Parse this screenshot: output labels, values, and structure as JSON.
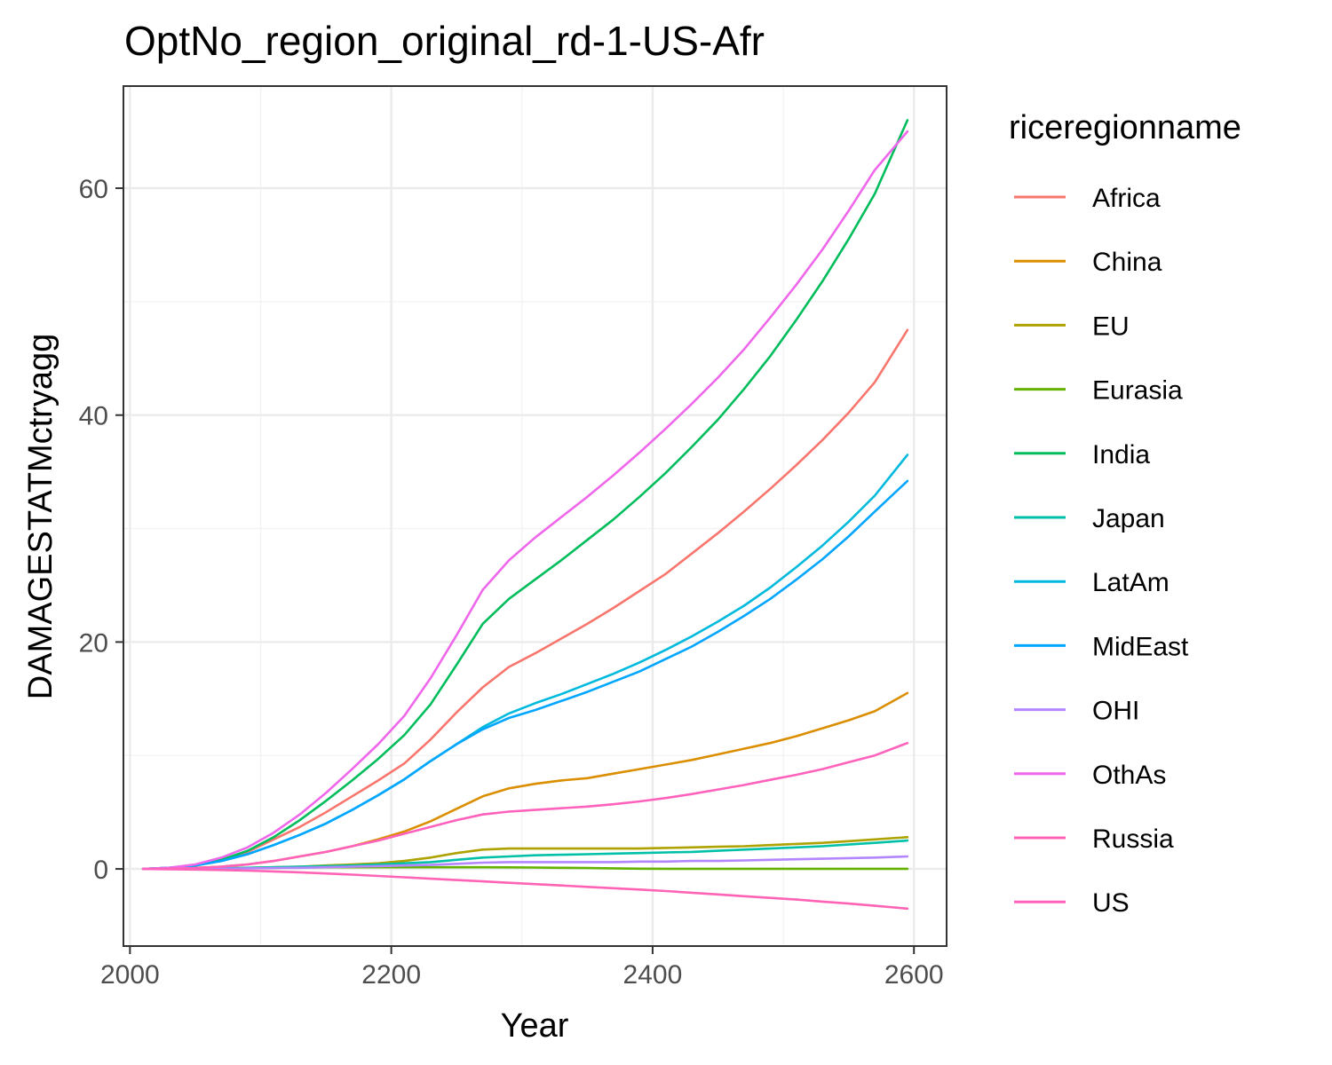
{
  "chart_data": {
    "type": "line",
    "title": "OptNo_region_original_rd-1-US-Afr",
    "xlabel": "Year",
    "ylabel": "DAMAGESTATMctryagg",
    "xlim": [
      1995,
      2625
    ],
    "ylim": [
      -6.8,
      69
    ],
    "x_ticks": [
      2000,
      2200,
      2400,
      2600
    ],
    "y_ticks": [
      0,
      20,
      40,
      60
    ],
    "x_minor": [
      2100,
      2300,
      2500
    ],
    "y_minor": [
      10,
      30,
      50
    ],
    "grid": true,
    "legend_title": "riceregionname",
    "legend_position": "right",
    "x": [
      2010,
      2030,
      2050,
      2070,
      2090,
      2110,
      2130,
      2150,
      2170,
      2190,
      2210,
      2230,
      2250,
      2270,
      2290,
      2310,
      2330,
      2350,
      2370,
      2390,
      2410,
      2430,
      2450,
      2470,
      2490,
      2510,
      2530,
      2550,
      2570,
      2595
    ],
    "series": [
      {
        "name": "Africa",
        "color": "#F8766D",
        "values": [
          0,
          0.1,
          0.3,
          0.8,
          1.5,
          2.6,
          3.7,
          5.0,
          6.4,
          7.8,
          9.3,
          11.4,
          13.8,
          16.0,
          17.8,
          19.0,
          20.3,
          21.6,
          23.0,
          24.5,
          26.0,
          27.8,
          29.6,
          31.5,
          33.5,
          35.6,
          37.8,
          40.2,
          42.9,
          47.5
        ]
      },
      {
        "name": "China",
        "color": "#DB8E00",
        "values": [
          0,
          0.02,
          0.1,
          0.2,
          0.4,
          0.7,
          1.1,
          1.5,
          2.0,
          2.6,
          3.3,
          4.2,
          5.3,
          6.4,
          7.1,
          7.5,
          7.8,
          8.0,
          8.4,
          8.8,
          9.2,
          9.6,
          10.1,
          10.6,
          11.1,
          11.7,
          12.4,
          13.1,
          13.9,
          15.5
        ]
      },
      {
        "name": "EU",
        "color": "#AEA200",
        "values": [
          0,
          0,
          0.02,
          0.05,
          0.1,
          0.15,
          0.2,
          0.3,
          0.4,
          0.5,
          0.7,
          1.0,
          1.4,
          1.7,
          1.8,
          1.8,
          1.8,
          1.8,
          1.8,
          1.8,
          1.85,
          1.9,
          1.95,
          2.0,
          2.1,
          2.2,
          2.3,
          2.45,
          2.6,
          2.8
        ]
      },
      {
        "name": "Eurasia",
        "color": "#64B200",
        "values": [
          0,
          0.02,
          0.04,
          0.06,
          0.08,
          0.1,
          0.12,
          0.14,
          0.15,
          0.15,
          0.15,
          0.15,
          0.15,
          0.15,
          0.14,
          0.12,
          0.1,
          0.08,
          0.05,
          0.02,
          0.01,
          0.01,
          0.01,
          0.01,
          0.01,
          0.01,
          0.01,
          0.01,
          0.01,
          0.01
        ]
      },
      {
        "name": "India",
        "color": "#00BD5C",
        "values": [
          0,
          0.1,
          0.3,
          0.8,
          1.6,
          2.8,
          4.3,
          6.0,
          7.8,
          9.7,
          11.8,
          14.5,
          18.0,
          21.6,
          23.8,
          25.5,
          27.2,
          29.0,
          30.8,
          32.8,
          34.9,
          37.2,
          39.6,
          42.3,
          45.2,
          48.4,
          51.8,
          55.5,
          59.5,
          66.0
        ]
      },
      {
        "name": "Japan",
        "color": "#00C1A7",
        "values": [
          0,
          0,
          0.02,
          0.05,
          0.1,
          0.15,
          0.2,
          0.25,
          0.3,
          0.4,
          0.5,
          0.6,
          0.8,
          1.0,
          1.1,
          1.2,
          1.25,
          1.3,
          1.35,
          1.4,
          1.45,
          1.5,
          1.6,
          1.7,
          1.8,
          1.9,
          2.0,
          2.15,
          2.3,
          2.5
        ]
      },
      {
        "name": "LatAm",
        "color": "#00BADE",
        "values": [
          0,
          0.1,
          0.3,
          0.7,
          1.3,
          2.1,
          3.0,
          4.0,
          5.2,
          6.5,
          7.9,
          9.5,
          11.0,
          12.5,
          13.7,
          14.6,
          15.4,
          16.3,
          17.2,
          18.2,
          19.3,
          20.5,
          21.8,
          23.2,
          24.8,
          26.6,
          28.5,
          30.6,
          32.9,
          36.5
        ]
      },
      {
        "name": "MidEast",
        "color": "#00A6FF",
        "values": [
          0,
          0.1,
          0.3,
          0.7,
          1.3,
          2.1,
          3.0,
          4.0,
          5.2,
          6.5,
          7.9,
          9.5,
          11.0,
          12.3,
          13.3,
          14.0,
          14.8,
          15.6,
          16.5,
          17.4,
          18.5,
          19.6,
          20.9,
          22.3,
          23.8,
          25.5,
          27.3,
          29.3,
          31.5,
          34.2
        ]
      },
      {
        "name": "OHI",
        "color": "#B385FF",
        "values": [
          0,
          0,
          0.01,
          0.03,
          0.05,
          0.08,
          0.1,
          0.15,
          0.2,
          0.25,
          0.3,
          0.35,
          0.45,
          0.55,
          0.6,
          0.6,
          0.6,
          0.6,
          0.6,
          0.65,
          0.65,
          0.7,
          0.7,
          0.75,
          0.8,
          0.85,
          0.9,
          0.95,
          1.0,
          1.1
        ]
      },
      {
        "name": "OthAs",
        "color": "#EF67EB",
        "values": [
          0,
          0.1,
          0.4,
          1.0,
          1.9,
          3.2,
          4.8,
          6.7,
          8.8,
          11.0,
          13.5,
          16.8,
          20.6,
          24.6,
          27.2,
          29.2,
          31.0,
          32.8,
          34.7,
          36.7,
          38.8,
          41.0,
          43.3,
          45.8,
          48.6,
          51.5,
          54.6,
          58.0,
          61.6,
          65.0
        ]
      },
      {
        "name": "Russia",
        "color": "#FF63B6",
        "values": [
          0,
          -0.03,
          -0.06,
          -0.1,
          -0.15,
          -0.22,
          -0.3,
          -0.4,
          -0.5,
          -0.62,
          -0.74,
          -0.86,
          -0.98,
          -1.1,
          -1.22,
          -1.34,
          -1.46,
          -1.58,
          -1.7,
          -1.82,
          -1.95,
          -2.1,
          -2.25,
          -2.4,
          -2.55,
          -2.7,
          -2.88,
          -3.05,
          -3.25,
          -3.5
        ]
      },
      {
        "name": "US",
        "color": "#FF62BC",
        "values": [
          0,
          0.02,
          0.08,
          0.2,
          0.4,
          0.7,
          1.1,
          1.5,
          2.0,
          2.5,
          3.1,
          3.7,
          4.3,
          4.8,
          5.05,
          5.2,
          5.35,
          5.5,
          5.7,
          5.95,
          6.25,
          6.6,
          7.0,
          7.4,
          7.85,
          8.3,
          8.8,
          9.4,
          10.0,
          11.1
        ]
      }
    ]
  }
}
